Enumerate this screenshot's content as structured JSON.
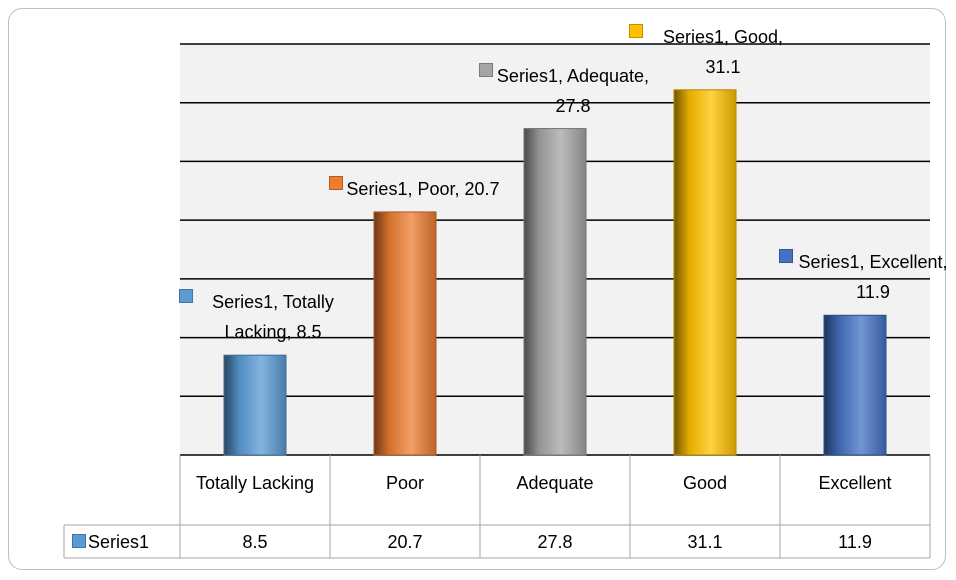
{
  "chart_data": {
    "type": "bar",
    "categories": [
      "Totally Lacking",
      "Poor",
      "Adequate",
      "Good",
      "Excellent"
    ],
    "series": [
      {
        "name": "Series1",
        "values": [
          8.5,
          20.7,
          27.8,
          31.1,
          11.9
        ]
      }
    ],
    "colors": [
      "#5b9bd5",
      "#ed7d31",
      "#a5a5a5",
      "#ffc000",
      "#4472c4"
    ],
    "data_label_separator": ", ",
    "ylim": [
      0,
      35
    ],
    "yticks": [
      0,
      5,
      10,
      15,
      20,
      25,
      30,
      35
    ],
    "grid": true,
    "data_table": true
  }
}
